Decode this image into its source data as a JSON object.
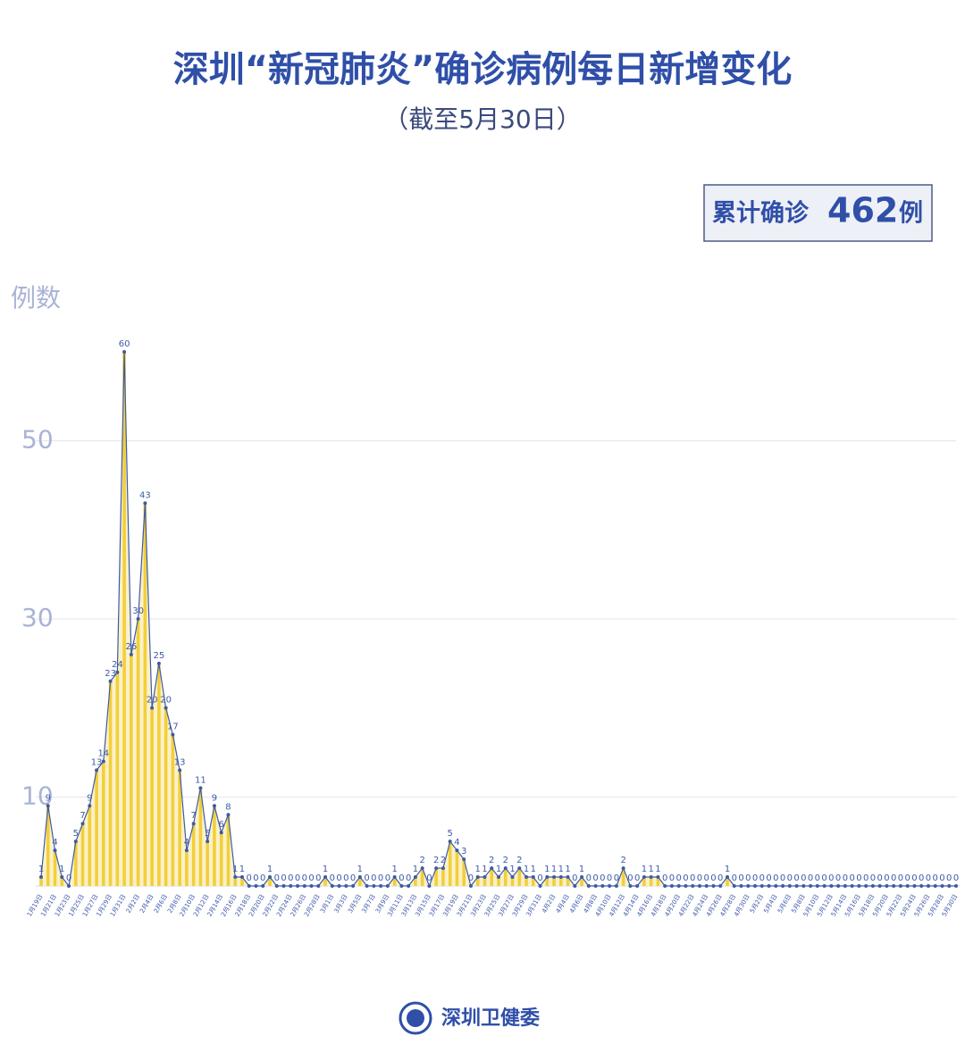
{
  "chart_data": {
    "type": "area",
    "title": "深圳“新冠肺炎”确诊病例每日新增变化",
    "subtitle": "（截至5月30日）",
    "total_label": "累计确诊",
    "total": 462,
    "total_unit": "例",
    "y_label": "例数",
    "source": "深圳卫健委",
    "line_color": "#3d5aa8",
    "fill_color": "#f2cf3a",
    "ylim": [
      0,
      60
    ],
    "yticks": [
      10,
      30,
      50
    ],
    "grid": true,
    "categories": [
      "1月19日",
      null,
      "1月21日",
      null,
      "1月23日",
      null,
      "1月25日",
      null,
      "1月27日",
      null,
      "1月29日",
      null,
      "1月31日",
      null,
      "2月2日",
      null,
      "2月4日",
      null,
      "2月6日",
      null,
      "2月8日",
      null,
      "2月10日",
      null,
      "2月12日",
      null,
      "2月14日",
      null,
      "2月16日",
      null,
      "2月18日",
      null,
      "2月20日",
      null,
      "2月22日",
      null,
      "2月24日",
      null,
      "2月26日",
      null,
      "2月28日",
      null,
      "3月1日",
      null,
      "3月3日",
      null,
      "3月5日",
      null,
      "3月7日",
      null,
      "3月9日",
      null,
      "3月11日",
      null,
      "3月13日",
      null,
      "3月15日",
      null,
      "3月17日",
      null,
      "3月19日",
      null,
      "3月21日",
      null,
      "3月23日",
      null,
      "3月25日",
      null,
      "3月27日",
      null,
      "3月29日",
      null,
      "3月31日",
      null,
      "4月2日",
      null,
      "4月4日",
      null,
      "4月6日",
      null,
      "4月8日",
      null,
      "4月10日",
      null,
      "4月12日",
      null,
      "4月14日",
      null,
      "4月16日",
      null,
      "4月18日",
      null,
      "4月20日",
      null,
      "4月22日",
      null,
      "4月24日",
      null,
      "4月26日",
      null,
      "4月28日",
      null,
      "4月30日",
      null,
      "5月2日",
      null,
      "5月4日",
      null,
      "5月6日",
      null,
      "5月8日",
      null,
      "5月10日",
      null,
      "5月12日",
      null,
      "5月14日",
      null,
      "5月16日",
      null,
      "5月18日",
      null,
      "5月20日",
      null,
      "5月22日",
      null,
      "5月24日",
      null,
      "5月26日",
      null,
      "5月28日",
      null,
      "5月30日"
    ],
    "values": [
      1,
      9,
      4,
      1,
      0,
      5,
      7,
      9,
      13,
      14,
      23,
      24,
      60,
      26,
      30,
      43,
      20,
      25,
      20,
      17,
      13,
      4,
      7,
      11,
      5,
      9,
      6,
      8,
      1,
      1,
      0,
      0,
      0,
      1,
      0,
      0,
      0,
      0,
      0,
      0,
      0,
      1,
      0,
      0,
      0,
      0,
      1,
      0,
      0,
      0,
      0,
      1,
      0,
      0,
      1,
      2,
      0,
      2,
      2,
      5,
      4,
      3,
      0,
      1,
      1,
      2,
      1,
      2,
      1,
      2,
      1,
      1,
      0,
      1,
      1,
      1,
      1,
      0,
      1,
      0,
      0,
      0,
      0,
      0,
      2,
      0,
      0,
      1,
      1,
      1,
      0,
      0,
      0,
      0,
      0,
      0,
      0,
      0,
      0,
      1,
      0,
      0,
      0,
      0,
      0,
      0,
      0,
      0,
      0,
      0,
      0,
      0,
      0,
      0,
      0,
      0,
      0,
      0,
      0,
      0,
      0,
      0,
      0,
      0,
      0,
      0,
      0,
      0,
      0,
      0,
      0,
      0,
      0
    ]
  }
}
